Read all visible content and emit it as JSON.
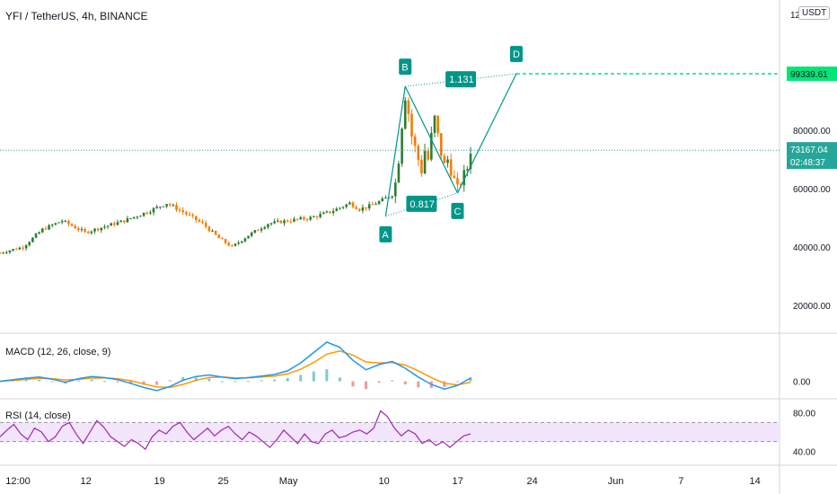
{
  "header": {
    "title": "YFI / TetherUS, 4h, BINANCE",
    "currency_badge": "USDT"
  },
  "colors": {
    "up": "#26a69a",
    "down": "#ef5350",
    "candle_up": "#2e7d32",
    "candle_down": "#f57c00",
    "pattern": "#009688",
    "target_line": "#00e676",
    "last_price": "#26a69a",
    "macd": "#2196f3",
    "signal": "#ff9800",
    "rsi": "#9c27b0",
    "rsi_band": "#f3e5fc"
  },
  "chart_data": [
    {
      "type": "candlestick",
      "pane": "price",
      "y_ticks": [
        "20000.00",
        "40000.00",
        "60000.00",
        "80000.00"
      ],
      "y_top_label": "12",
      "ylim": [
        0,
        120000
      ],
      "x_ticks": [
        "12:00",
        "12",
        "19",
        "25",
        "May",
        "10",
        "17",
        "24",
        "Jun",
        "7",
        "14"
      ],
      "last_price": {
        "value": 73167.04,
        "label": "73167.04",
        "countdown": "02:48:37"
      },
      "target_price": {
        "value": 99339.61,
        "label": "99339.61"
      },
      "pattern_points": [
        {
          "label": "A",
          "price": 50500
        },
        {
          "label": "B",
          "price": 95000
        },
        {
          "label": "C",
          "price": 58500
        },
        {
          "label": "D",
          "price": 99339.61
        }
      ],
      "ratios": [
        {
          "label": "1.131",
          "between": "B-D"
        },
        {
          "label": "0.817",
          "between": "A-C"
        }
      ],
      "trend_path": [
        [
          0,
          38000
        ],
        [
          7,
          40000
        ],
        [
          13,
          46000
        ],
        [
          19,
          49000
        ],
        [
          26,
          45000
        ],
        [
          32,
          47000
        ],
        [
          38,
          49000
        ],
        [
          45,
          52000
        ],
        [
          51,
          55000
        ],
        [
          56,
          52000
        ],
        [
          62,
          48000
        ],
        [
          67,
          43000
        ],
        [
          71,
          40000
        ],
        [
          76,
          44000
        ],
        [
          82,
          48000
        ],
        [
          88,
          49000
        ],
        [
          95,
          50000
        ],
        [
          101,
          52000
        ],
        [
          107,
          55000
        ],
        [
          110,
          53000
        ],
        [
          113,
          54000
        ],
        [
          117,
          56000
        ],
        [
          120,
          58000
        ],
        [
          121,
          62000
        ],
        [
          122,
          70000
        ],
        [
          123,
          82000
        ],
        [
          124,
          92000
        ],
        [
          125,
          86000
        ],
        [
          126,
          78000
        ],
        [
          127,
          74000
        ],
        [
          128,
          70000
        ],
        [
          129,
          66000
        ],
        [
          130,
          73000
        ],
        [
          131,
          70000
        ],
        [
          132,
          78000
        ],
        [
          133,
          84000
        ],
        [
          134,
          78000
        ],
        [
          135,
          72000
        ],
        [
          136,
          68000
        ],
        [
          137,
          70000
        ],
        [
          138,
          66000
        ],
        [
          139,
          63000
        ],
        [
          140,
          60000
        ],
        [
          141,
          62000
        ],
        [
          142,
          65000
        ],
        [
          143,
          67000
        ],
        [
          144,
          73167
        ]
      ]
    },
    {
      "type": "line",
      "pane": "macd",
      "label": "MACD (12, 26, close, 9)",
      "y_ticks": [
        "0.00"
      ],
      "series": [
        {
          "name": "MACD",
          "values": [
            0,
            300,
            600,
            800,
            400,
            -200,
            500,
            900,
            700,
            300,
            -400,
            -1200,
            -1800,
            -1000,
            200,
            900,
            1200,
            800,
            500,
            700,
            1000,
            1300,
            2000,
            3500,
            5500,
            7500,
            6500,
            4000,
            2200,
            3200,
            3800,
            2500,
            800,
            -600,
            -1500,
            -800,
            600
          ]
        },
        {
          "name": "Signal",
          "values": [
            0,
            150,
            350,
            550,
            500,
            250,
            350,
            600,
            650,
            500,
            100,
            -500,
            -1100,
            -1200,
            -600,
            200,
            700,
            800,
            650,
            650,
            800,
            1000,
            1400,
            2300,
            3600,
            5200,
            5800,
            5000,
            3700,
            3500,
            3600,
            3100,
            2000,
            700,
            -400,
            -700,
            -200
          ]
        }
      ]
    },
    {
      "type": "line",
      "pane": "rsi",
      "label": "RSI (14, close)",
      "y_ticks": [
        "80.00",
        "40.00"
      ],
      "band": [
        50,
        70
      ],
      "ylim": [
        30,
        90
      ],
      "series": [
        {
          "name": "RSI",
          "values": [
            55,
            62,
            68,
            58,
            52,
            64,
            60,
            50,
            55,
            66,
            70,
            58,
            48,
            60,
            72,
            65,
            55,
            50,
            45,
            52,
            48,
            42,
            55,
            62,
            58,
            66,
            70,
            60,
            52,
            58,
            64,
            56,
            62,
            66,
            58,
            52,
            60,
            56,
            50,
            44,
            52,
            62,
            55,
            48,
            58,
            50,
            48,
            58,
            62,
            54,
            56,
            60,
            62,
            58,
            64,
            82,
            76,
            64,
            56,
            62,
            58,
            48,
            52,
            46,
            50,
            44,
            50,
            56,
            58
          ]
        }
      ]
    }
  ]
}
